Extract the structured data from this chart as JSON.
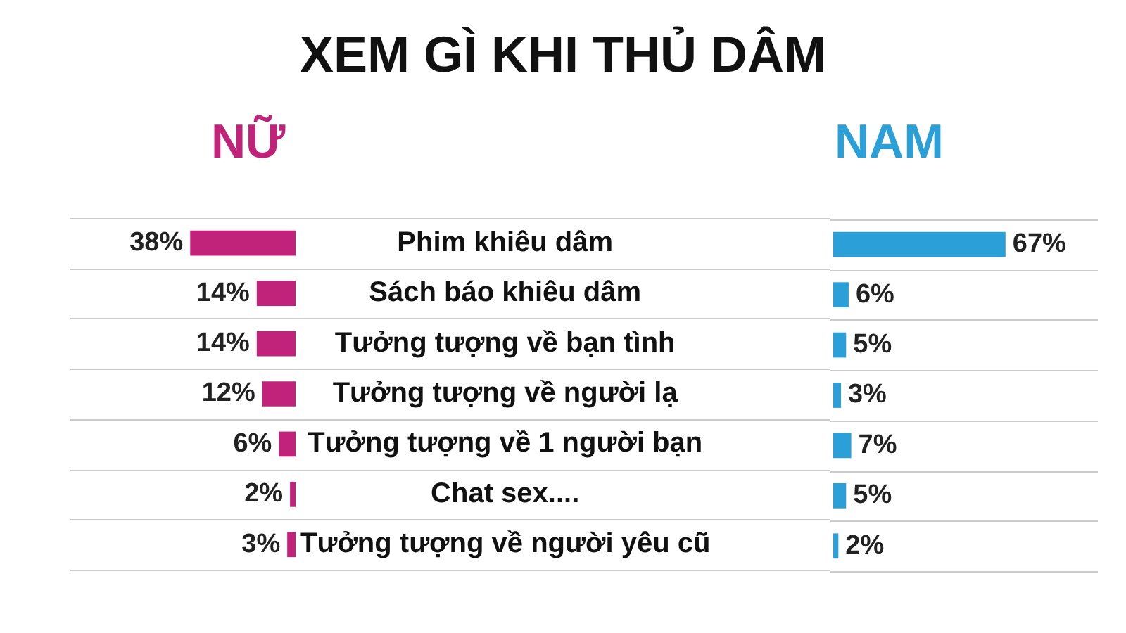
{
  "chart_data": [
    {
      "type": "bar",
      "orientation": "horizontal",
      "title": "XEM GÌ KHI THỦ DÂM",
      "grid": "y",
      "categories": [
        "Phim khiêu dâm",
        "Sách báo khiêu dâm",
        "Tưởng tượng về bạn tình",
        "Tưởng tượng về người lạ",
        "Tưởng tượng về 1 người bạn",
        "Chat sex....",
        "Tưởng tượng về người yêu cũ"
      ],
      "series": [
        {
          "name": "NỮ",
          "color": "#c2237a",
          "values": [
            38,
            14,
            14,
            12,
            6,
            2,
            3
          ],
          "value_labels": [
            "38%",
            "14%",
            "14%",
            "12%",
            "6%",
            "2%",
            "3%"
          ]
        }
      ]
    },
    {
      "type": "bar",
      "orientation": "horizontal",
      "grid": "y",
      "tick_labels": false,
      "categories": [
        null,
        null,
        null,
        null,
        null,
        null,
        null
      ],
      "series": [
        {
          "name": "NAM",
          "color": "#2a9fd8",
          "values": [
            67,
            6,
            5,
            3,
            7,
            5,
            2
          ],
          "value_labels": [
            "67%",
            "6%",
            "5%",
            "3%",
            "7%",
            "5%",
            "2%"
          ]
        }
      ]
    }
  ]
}
